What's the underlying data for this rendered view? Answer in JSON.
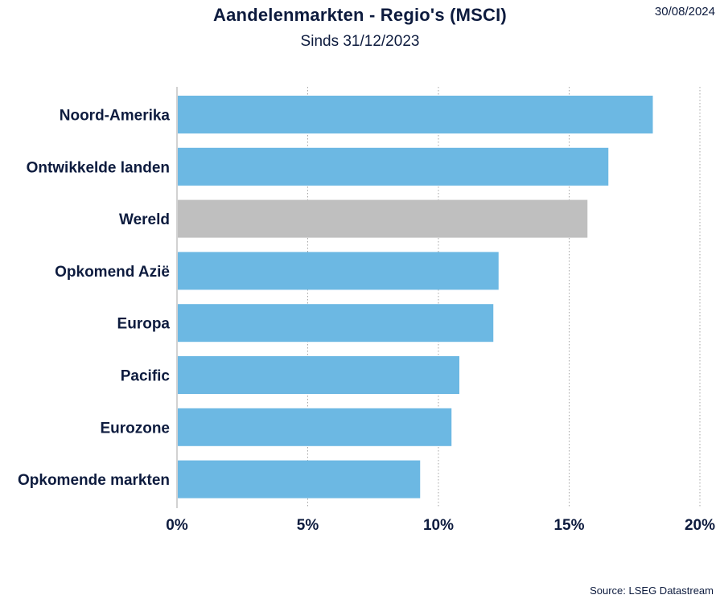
{
  "header": {
    "title": "Aandelenmarkten - Regio's (MSCI)",
    "subtitle": "Sinds 31/12/2023",
    "date": "30/08/2024"
  },
  "footer": {
    "source": "Source: LSEG Datastream"
  },
  "colors": {
    "bar": "#6cb8e3",
    "highlight": "#bfbfbf",
    "text": "#0d1b3e",
    "grid": "#a6a6a6"
  },
  "chart_data": {
    "type": "bar",
    "orientation": "horizontal",
    "title": "Aandelenmarkten - Regio's (MSCI)",
    "subtitle": "Sinds 31/12/2023",
    "xlabel": "",
    "ylabel": "",
    "categories": [
      "Noord-Amerika",
      "Ontwikkelde landen",
      "Wereld",
      "Opkomend Azië",
      "Europa",
      "Pacific",
      "Eurozone",
      "Opkomende markten"
    ],
    "values": [
      18.2,
      16.5,
      15.7,
      12.3,
      12.1,
      10.8,
      10.5,
      9.3
    ],
    "highlighted": [
      "Wereld"
    ],
    "xlim": [
      0,
      20
    ],
    "xticks": [
      0,
      5,
      10,
      15,
      20
    ],
    "xtick_labels": [
      "0%",
      "5%",
      "10%",
      "15%",
      "20%"
    ],
    "grid": "vertical dotted",
    "legend": "none"
  }
}
